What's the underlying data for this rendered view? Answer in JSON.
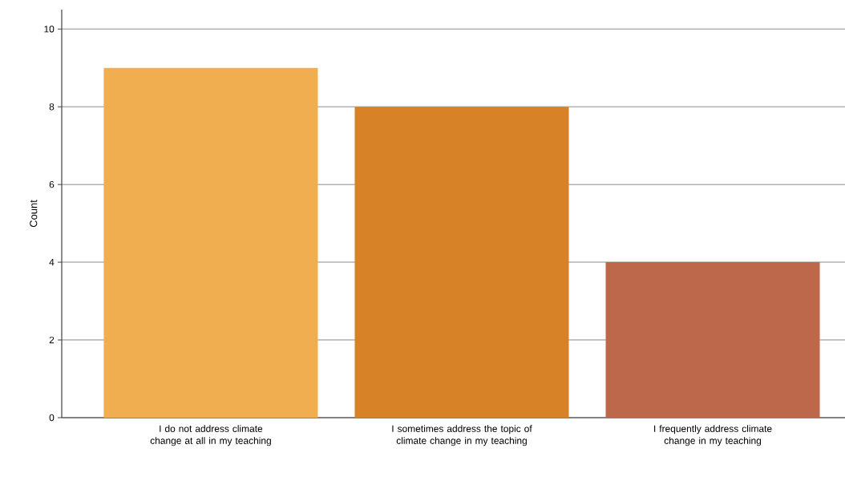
{
  "chart_data": {
    "type": "bar",
    "ylabel": "Count",
    "categories": [
      "I do not address climate change at all in my teaching",
      "I sometimes address the topic of climate change in my teaching",
      "I frequently address climate change in my teaching"
    ],
    "values": [
      9,
      8,
      4
    ],
    "colors": [
      "#f0ae50",
      "#d78226",
      "#bd684b"
    ],
    "ylim": [
      0,
      10.5
    ],
    "yticks": [
      0,
      2,
      4,
      6,
      8,
      10
    ],
    "grid": "y"
  }
}
